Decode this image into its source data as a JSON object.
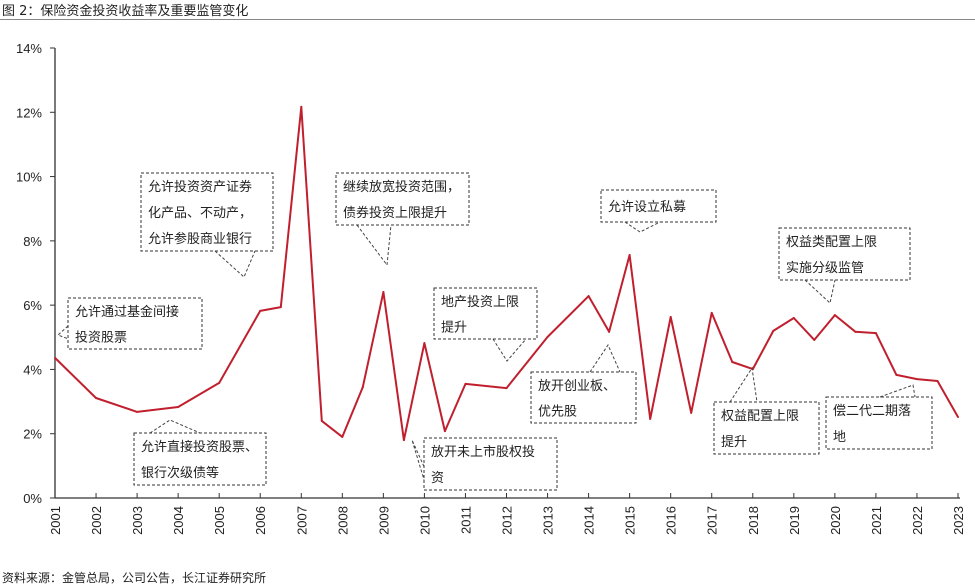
{
  "title": "图 2：保险资金投资收益率及重要监管变化",
  "source": "资料来源：金管总局，公司公告，长江证券研究所",
  "colors": {
    "line": "#c0202e",
    "axis": "#333333",
    "annotation_border": "#333333"
  },
  "chart_data": {
    "type": "line",
    "title": "",
    "xlabel": "",
    "ylabel": "",
    "ylim": [
      0,
      14
    ],
    "xlim": [
      2001,
      2023
    ],
    "grid": false,
    "y_ticks": [
      "0%",
      "2%",
      "4%",
      "6%",
      "8%",
      "10%",
      "12%",
      "14%"
    ],
    "x_ticks": [
      "2001",
      "2002",
      "2003",
      "2004",
      "2005",
      "2006",
      "2007",
      "2008",
      "2009",
      "2010",
      "2011",
      "2012",
      "2013",
      "2014",
      "2015",
      "2016",
      "2017",
      "2018",
      "2019",
      "2020",
      "2021",
      "2022",
      "2023"
    ],
    "series": [
      {
        "x": [
          2001,
          2002,
          2003,
          2004,
          2005,
          2006,
          2006.5,
          2007,
          2007.5,
          2008,
          2008.5,
          2009,
          2009.5,
          2010,
          2010.5,
          2011,
          2012,
          2013,
          2014,
          2014.5,
          2015,
          2015.5,
          2016,
          2016.5,
          2017,
          2017.5,
          2018,
          2018.5,
          2019,
          2019.5,
          2020,
          2020.5,
          2021,
          2021.5,
          2022,
          2022.5,
          2023
        ],
        "y": [
          4.36,
          3.11,
          2.68,
          2.83,
          3.58,
          5.82,
          5.94,
          12.17,
          2.4,
          1.9,
          3.45,
          6.41,
          1.8,
          4.82,
          2.08,
          3.55,
          3.42,
          5.01,
          6.28,
          5.17,
          7.56,
          2.46,
          5.63,
          2.65,
          5.76,
          4.23,
          4.01,
          5.2,
          5.6,
          4.92,
          5.69,
          5.17,
          5.13,
          3.83,
          3.7,
          3.64,
          2.52
        ]
      }
    ],
    "annotations": [
      {
        "lines": [
          "允许通过基金间接",
          "投资股票"
        ]
      },
      {
        "lines": [
          "允许投资资产证券",
          "化产品、不动产，",
          "允许参股商业银行"
        ]
      },
      {
        "lines": [
          "允许直接投资股票、",
          "银行次级债等"
        ]
      },
      {
        "lines": [
          "继续放宽投资范围，",
          "债券投资上限提升"
        ]
      },
      {
        "lines": [
          "地产投资上限",
          "提升"
        ]
      },
      {
        "lines": [
          "放开未上市股权投",
          "资"
        ]
      },
      {
        "lines": [
          "放开创业板、",
          "优先股"
        ]
      },
      {
        "lines": [
          "允许设立私募"
        ]
      },
      {
        "lines": [
          "权益类配置上限",
          "实施分级监管"
        ]
      },
      {
        "lines": [
          "权益配置上限",
          "提升"
        ]
      },
      {
        "lines": [
          "偿二代二期落",
          "地"
        ]
      }
    ]
  }
}
